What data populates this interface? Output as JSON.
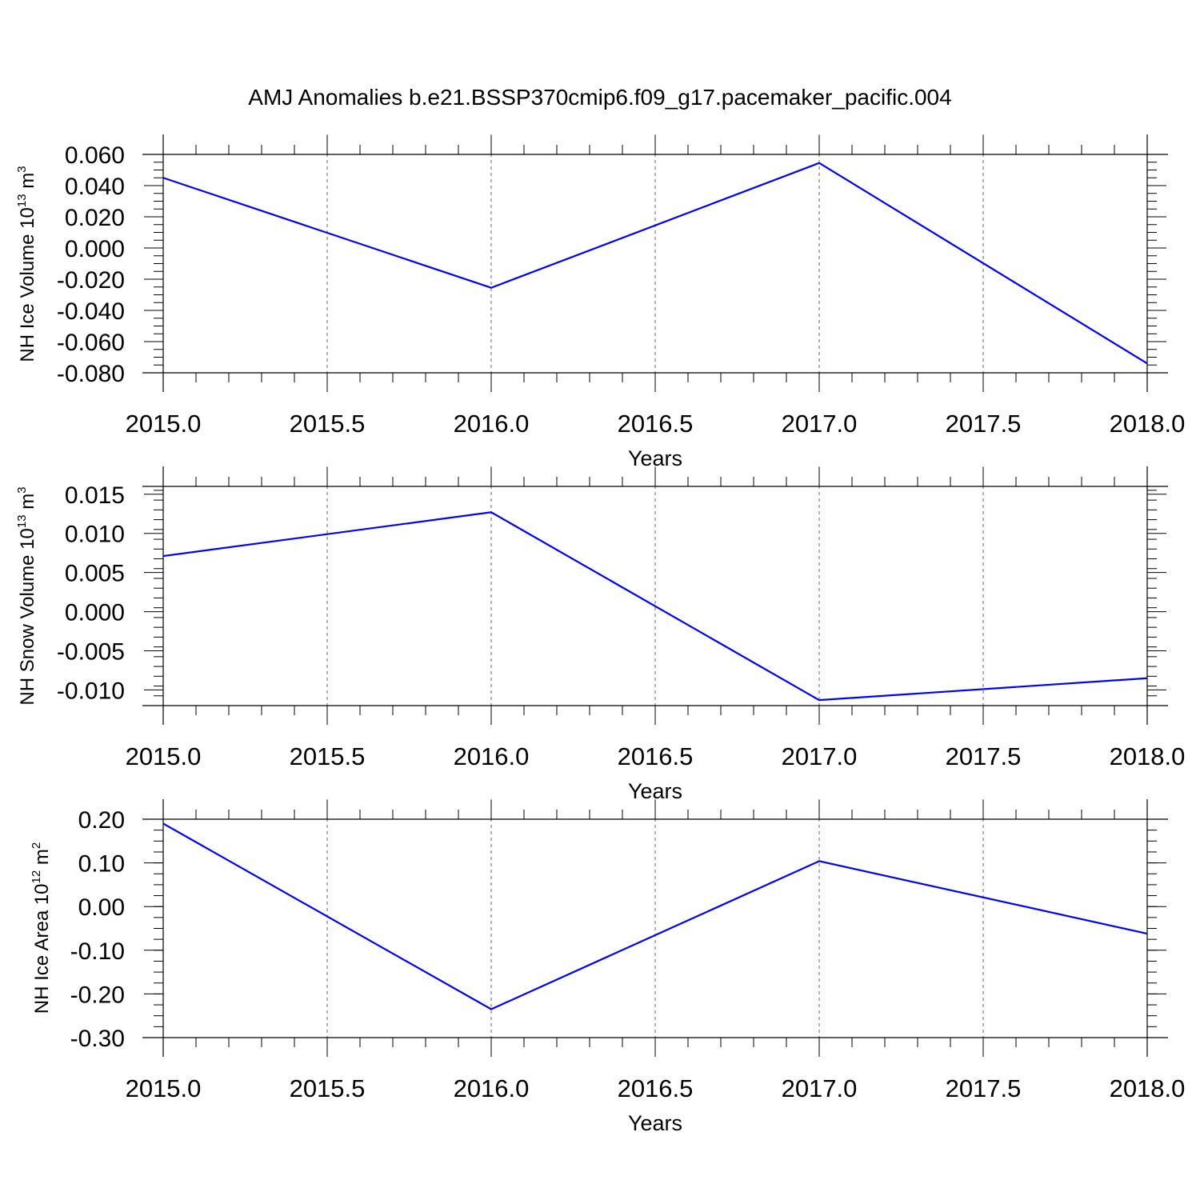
{
  "title": "AMJ Anomalies b.e21.BSSP370cmip6.f09_g17.pacemaker_pacific.004",
  "colors": {
    "series": "#0000ff",
    "axes": "#000000",
    "grid": "#666666"
  },
  "chart_data": [
    {
      "type": "line",
      "xlabel": "Years",
      "ylabel": {
        "text": "NH Ice Volume 10",
        "sup": "13",
        "unit": " m",
        "unit_sup": "3"
      },
      "xlim": [
        2015.0,
        2018.0
      ],
      "ylim": [
        -0.08,
        0.06
      ],
      "x_ticks": [
        "2015.0",
        "2015.5",
        "2016.0",
        "2016.5",
        "2017.0",
        "2017.5",
        "2018.0"
      ],
      "y_ticks": [
        "0.060",
        "0.040",
        "0.020",
        "0.000",
        "-0.020",
        "-0.040",
        "-0.060",
        "-0.080"
      ],
      "grid": "vertical dashed",
      "series": [
        {
          "x": [
            2015,
            2016,
            2017,
            2018
          ],
          "values": [
            0.045,
            -0.0255,
            0.0545,
            -0.074
          ]
        }
      ]
    },
    {
      "type": "line",
      "xlabel": "Years",
      "ylabel": {
        "text": "NH Snow Volume 10",
        "sup": "13",
        "unit": " m",
        "unit_sup": "3"
      },
      "xlim": [
        2015.0,
        2018.0
      ],
      "ylim": [
        -0.012,
        0.016
      ],
      "x_ticks": [
        "2015.0",
        "2015.5",
        "2016.0",
        "2016.5",
        "2017.0",
        "2017.5",
        "2018.0"
      ],
      "y_ticks": [
        "0.015",
        "0.010",
        "0.005",
        "0.000",
        "-0.005",
        "-0.010"
      ],
      "grid": "vertical dashed",
      "series": [
        {
          "x": [
            2015,
            2016,
            2017,
            2018
          ],
          "values": [
            0.0071,
            0.0127,
            -0.0113,
            -0.0085
          ]
        }
      ]
    },
    {
      "type": "line",
      "xlabel": "Years",
      "ylabel": {
        "text": "NH Ice Area 10",
        "sup": "12",
        "unit": " m",
        "unit_sup": "2"
      },
      "xlim": [
        2015.0,
        2018.0
      ],
      "ylim": [
        -0.3,
        0.2
      ],
      "x_ticks": [
        "2015.0",
        "2015.5",
        "2016.0",
        "2016.5",
        "2017.0",
        "2017.5",
        "2018.0"
      ],
      "y_ticks": [
        "0.20",
        "0.10",
        "0.00",
        "-0.10",
        "-0.20",
        "-0.30"
      ],
      "grid": "vertical dashed",
      "series": [
        {
          "x": [
            2015,
            2016,
            2017,
            2018
          ],
          "values": [
            0.19,
            -0.235,
            0.104,
            -0.062
          ]
        }
      ]
    }
  ]
}
